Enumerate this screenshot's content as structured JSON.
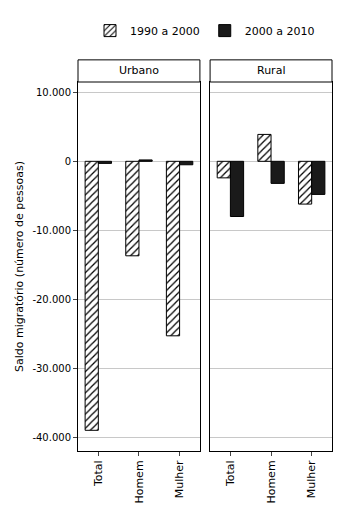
{
  "chart_data": [
    {
      "type": "bar",
      "title": "Urbano",
      "y_label": "Saldo migratório (número de pessoas)",
      "categories": [
        "Total",
        "Homem",
        "Mulher"
      ],
      "series": [
        {
          "name": "1990 a 2000",
          "color": "#000000",
          "marker": "hatch",
          "values": [
            -39000,
            -13700,
            -25300
          ]
        },
        {
          "name": "2000 a 2010",
          "color": "#1a1a1a",
          "values": [
            -300,
            200,
            -500
          ]
        }
      ],
      "ylim": [
        -42000,
        11500
      ],
      "yticks": [
        {
          "value": -40000,
          "label": "-40.000"
        },
        {
          "value": -30000,
          "label": "-30.000"
        },
        {
          "value": -20000,
          "label": "-20.000"
        },
        {
          "value": -10000,
          "label": "-10.000"
        },
        0,
        {
          "value": 10000,
          "label": "10.000"
        }
      ],
      "grid": true,
      "legend": "top"
    },
    {
      "type": "bar",
      "title": "Rural",
      "categories": [
        "Total",
        "Homem",
        "Mulher"
      ],
      "series": [
        {
          "name": "1990 a 2000",
          "color": "#000000",
          "marker": "hatch",
          "values": [
            -2400,
            3900,
            -6200
          ]
        },
        {
          "name": "2000 a 2010",
          "color": "#1a1a1a",
          "values": [
            -8000,
            -3200,
            -4800
          ]
        }
      ],
      "ylim": [
        -42000,
        11500
      ],
      "yticks": [
        {
          "value": -40000,
          "label": "-40.000"
        },
        {
          "value": -30000,
          "label": "-30.000"
        },
        {
          "value": -20000,
          "label": "-20.000"
        },
        {
          "value": -10000,
          "label": "-10.000"
        },
        0,
        {
          "value": 10000,
          "label": "10.000"
        }
      ],
      "grid": true,
      "tick_labels": "x"
    }
  ]
}
